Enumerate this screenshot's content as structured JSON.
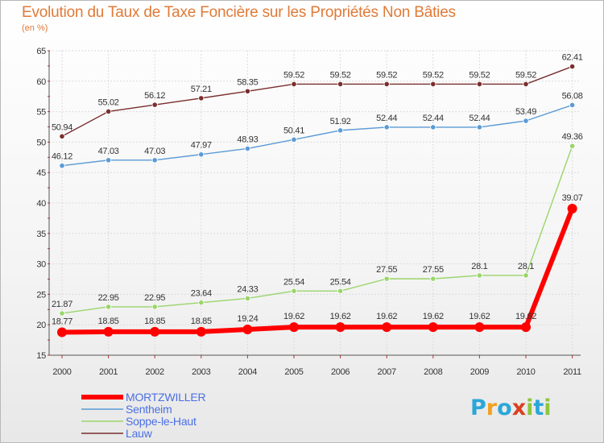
{
  "chart_data": {
    "type": "line",
    "title": "Evolution du Taux de Taxe Foncière sur les Propriétés Non Bâties",
    "ylabel": "(en %)",
    "xlabel": "",
    "ylim": [
      15,
      65
    ],
    "yticks": [
      15,
      20,
      25,
      30,
      35,
      40,
      45,
      50,
      55,
      60,
      65
    ],
    "grid": true,
    "categories": [
      "2000",
      "2001",
      "2002",
      "2003",
      "2004",
      "2005",
      "2006",
      "2007",
      "2008",
      "2009",
      "2010",
      "2011"
    ],
    "series": [
      {
        "name": "Lauw",
        "color": "#7a2e2e",
        "values": [
          50.94,
          55.02,
          56.12,
          57.21,
          58.35,
          59.52,
          59.52,
          59.52,
          59.52,
          59.52,
          59.52,
          62.41
        ]
      },
      {
        "name": "Sentheim",
        "color": "#5b9bd5",
        "values": [
          46.12,
          47.03,
          47.03,
          47.97,
          48.93,
          50.41,
          51.92,
          52.44,
          52.44,
          52.44,
          53.49,
          56.08
        ]
      },
      {
        "name": "Soppe-le-Haut",
        "color": "#9ad56a",
        "values": [
          21.87,
          22.95,
          22.95,
          23.64,
          24.33,
          25.54,
          25.54,
          27.55,
          27.55,
          28.1,
          28.1,
          49.36
        ]
      },
      {
        "name": "MORTZWILLER",
        "color": "#ff0000",
        "values": [
          18.77,
          18.85,
          18.85,
          18.85,
          19.24,
          19.62,
          19.62,
          19.62,
          19.62,
          19.62,
          19.62,
          39.07
        ]
      }
    ]
  },
  "legend": {
    "items": [
      {
        "label": "MORTZWILLER",
        "color": "#ff0000",
        "text_color": "#4a6fe3"
      },
      {
        "label": "Sentheim",
        "color": "#5b9bd5",
        "text_color": "#4a6fe3"
      },
      {
        "label": "Soppe-le-Haut",
        "color": "#9ad56a",
        "text_color": "#4a6fe3"
      },
      {
        "label": "Lauw",
        "color": "#7a2e2e",
        "text_color": "#4a6fe3"
      }
    ]
  },
  "logo": {
    "letters": [
      "P",
      "r",
      "o",
      "x",
      "i",
      "t",
      "i"
    ],
    "colors": [
      "#2aa7d8",
      "#f0a020",
      "#2aa7d8",
      "#d84020",
      "#8cc63e",
      "#2aa7d8",
      "#8cc63e"
    ]
  }
}
